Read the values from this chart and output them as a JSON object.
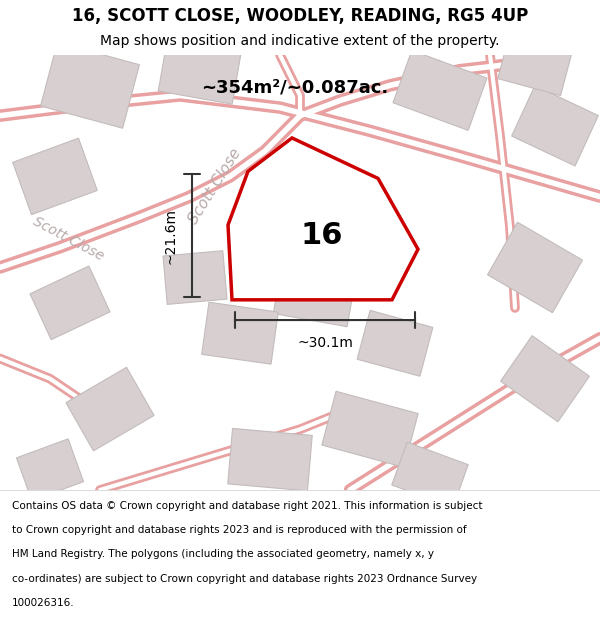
{
  "title": "16, SCOTT CLOSE, WOODLEY, READING, RG5 4UP",
  "subtitle": "Map shows position and indicative extent of the property.",
  "area_label": "~354m²/~0.087ac.",
  "property_number": "16",
  "dim_width": "~30.1m",
  "dim_height": "~21.6m",
  "footer_lines": [
    "Contains OS data © Crown copyright and database right 2021. This information is subject",
    "to Crown copyright and database rights 2023 and is reproduced with the permission of",
    "HM Land Registry. The polygons (including the associated geometry, namely x, y",
    "co-ordinates) are subject to Crown copyright and database rights 2023 Ordnance Survey",
    "100026316."
  ],
  "bg_color": "#ffffff",
  "map_bg": "#f8f5f5",
  "road_color": "#e8a0a0",
  "building_color": "#d8d0d0",
  "building_edge": "#c4bcbc",
  "property_color": "#cc0000",
  "dim_color": "#333333",
  "street_label_color": "#b8aaaa",
  "title_color": "#000000",
  "footer_color": "#000000",
  "title_fontsize": 12,
  "subtitle_fontsize": 10,
  "area_fontsize": 13,
  "number_fontsize": 22,
  "street_fontsize": 11,
  "dim_fontsize": 10,
  "footer_fontsize": 7.5
}
